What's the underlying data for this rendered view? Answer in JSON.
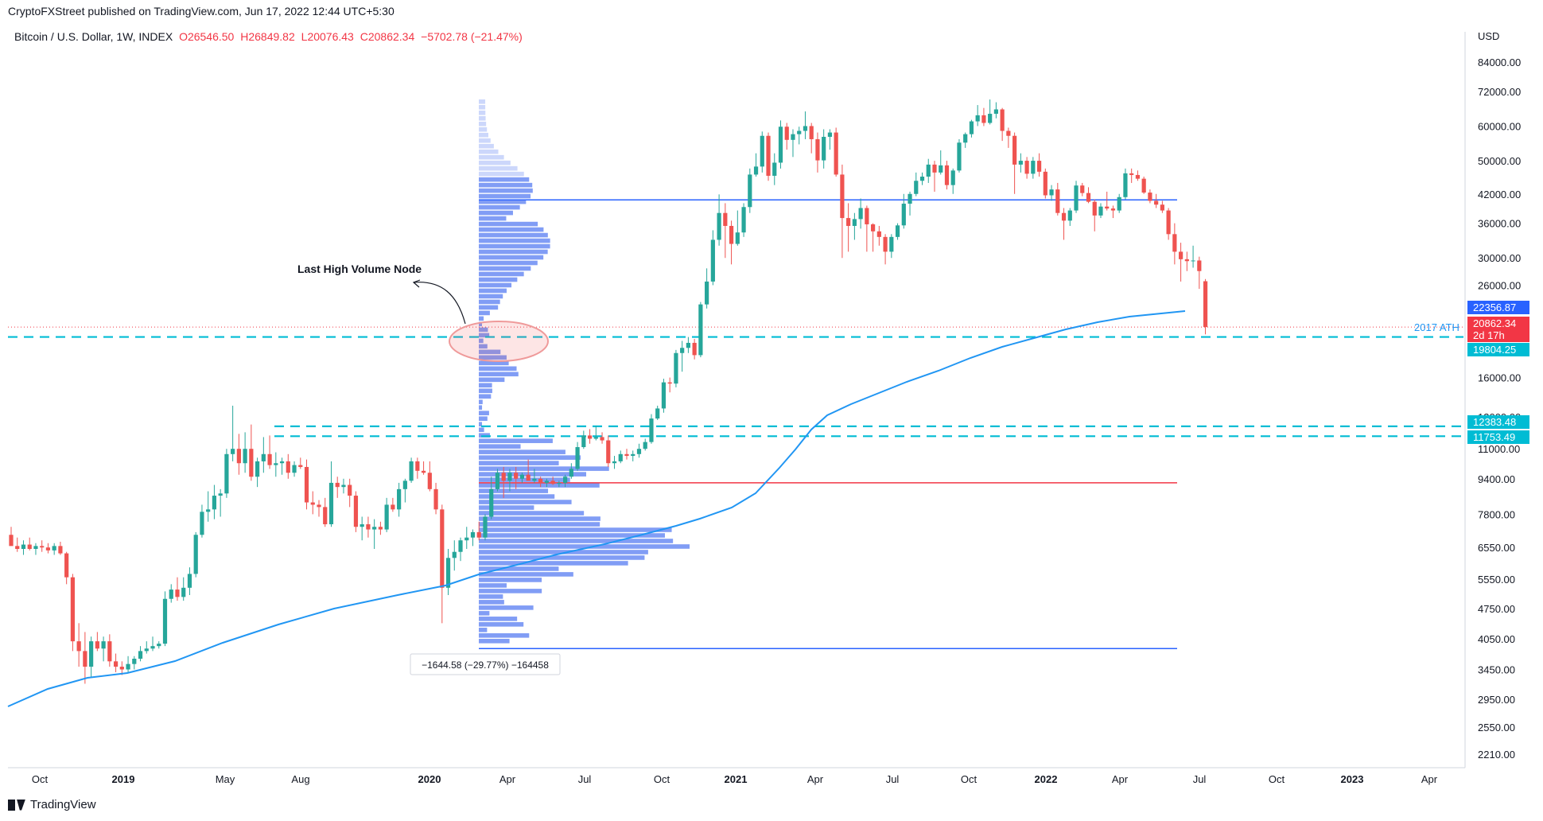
{
  "header": {
    "publisher_line": "CryptoFXStreet published on TradingView.com, Jun 17, 2022 12:44 UTC+5:30",
    "symbol": "Bitcoin / U.S. Dollar, 1W, INDEX",
    "open": "O26546.50",
    "high": "H26849.82",
    "low": "L20076.43",
    "close": "C20862.34",
    "change": "−5702.78 (−21.47%)"
  },
  "footer": {
    "brand": "TradingView"
  },
  "chart_data": {
    "type": "candlestick",
    "currency_label": "USD",
    "y_scale": "log",
    "y_ticks": [
      84000,
      72000,
      60000,
      50000,
      42000,
      36000,
      30000,
      26000,
      16000,
      13000,
      11000,
      9400,
      7800,
      6550,
      5550,
      4750,
      4050,
      3450,
      2950,
      2550,
      2210
    ],
    "x_ticks": [
      "Oct",
      "2019",
      "May",
      "Aug",
      "2020",
      "Apr",
      "Jul",
      "Oct",
      "2021",
      "Apr",
      "Jul",
      "Oct",
      "2022",
      "Apr",
      "Jul",
      "Oct",
      "2023",
      "Apr"
    ],
    "price_labels": [
      {
        "value": "22356.87",
        "color": "#2962ff"
      },
      {
        "value": "20862.34",
        "sub": "2d 17h",
        "color": "#f23645"
      },
      {
        "value": "19804.25",
        "color": "#00bcd4"
      },
      {
        "value": "12383.48",
        "color": "#00bcd4"
      },
      {
        "value": "11753.49",
        "color": "#00bcd4"
      }
    ],
    "annotations": {
      "node_label": "Last High Volume Node",
      "ath_label": "2017 ATH",
      "measure_label": "−1644.58 (−29.77%) −164458"
    },
    "horizontal_levels": [
      {
        "price": 40700,
        "color": "#2962ff",
        "style": "solid"
      },
      {
        "price": 19804.25,
        "color": "#00bcd4",
        "style": "dashed"
      },
      {
        "price": 12383.48,
        "color": "#00bcd4",
        "style": "dashed"
      },
      {
        "price": 11753.49,
        "color": "#00bcd4",
        "style": "dashed"
      },
      {
        "price": 9200,
        "color": "#f23645",
        "style": "solid"
      },
      {
        "price": 3850,
        "color": "#2962ff",
        "style": "solid"
      }
    ],
    "candles": [
      [
        7000,
        7300,
        6800,
        6600
      ],
      [
        6600,
        6900,
        6400,
        6500
      ],
      [
        6500,
        6800,
        6300,
        6650
      ],
      [
        6650,
        6900,
        6450,
        6500
      ],
      [
        6500,
        6700,
        6300,
        6600
      ],
      [
        6600,
        6800,
        6400,
        6550
      ],
      [
        6550,
        6700,
        6350,
        6450
      ],
      [
        6450,
        6700,
        6300,
        6600
      ],
      [
        6600,
        6750,
        6300,
        6350
      ],
      [
        6350,
        6400,
        5400,
        5600
      ],
      [
        5600,
        5700,
        3800,
        4000
      ],
      [
        4000,
        4400,
        3500,
        3800
      ],
      [
        3800,
        4200,
        3200,
        3500
      ],
      [
        3500,
        4100,
        3300,
        4000
      ],
      [
        4000,
        4200,
        3800,
        3850
      ],
      [
        3850,
        4100,
        3600,
        4000
      ],
      [
        4000,
        4150,
        3500,
        3600
      ],
      [
        3600,
        3750,
        3400,
        3500
      ],
      [
        3500,
        3600,
        3350,
        3450
      ],
      [
        3450,
        3700,
        3400,
        3550
      ],
      [
        3550,
        3700,
        3450,
        3650
      ],
      [
        3650,
        3900,
        3600,
        3800
      ],
      [
        3800,
        4000,
        3750,
        3850
      ],
      [
        3850,
        4100,
        3800,
        3900
      ],
      [
        3900,
        4000,
        3850,
        3950
      ],
      [
        3950,
        5200,
        3900,
        5000
      ],
      [
        5000,
        5400,
        4900,
        5250
      ],
      [
        5250,
        5600,
        4950,
        5050
      ],
      [
        5050,
        5600,
        4950,
        5300
      ],
      [
        5300,
        5900,
        5100,
        5700
      ],
      [
        5700,
        7100,
        5600,
        7000
      ],
      [
        7000,
        8200,
        6900,
        7900
      ],
      [
        7900,
        8800,
        7500,
        8000
      ],
      [
        8000,
        9100,
        7600,
        8600
      ],
      [
        8600,
        8900,
        7700,
        8700
      ],
      [
        8700,
        11000,
        8500,
        10700
      ],
      [
        10700,
        13800,
        10300,
        11000
      ],
      [
        11000,
        11900,
        9600,
        10200
      ],
      [
        10200,
        12000,
        9700,
        11000
      ],
      [
        11000,
        12500,
        9300,
        9500
      ],
      [
        9500,
        10500,
        9000,
        10300
      ],
      [
        10300,
        11700,
        9700,
        10700
      ],
      [
        10700,
        11800,
        9900,
        10100
      ],
      [
        10100,
        10800,
        9500,
        10200
      ],
      [
        10200,
        10500,
        9600,
        10300
      ],
      [
        10300,
        10700,
        9400,
        9700
      ],
      [
        9700,
        10300,
        9500,
        10100
      ],
      [
        10100,
        10500,
        9900,
        10000
      ],
      [
        10000,
        10400,
        8000,
        8300
      ],
      [
        8300,
        8800,
        7800,
        8200
      ],
      [
        8200,
        8400,
        7700,
        8100
      ],
      [
        8100,
        8500,
        7300,
        7400
      ],
      [
        7400,
        10300,
        7300,
        9200
      ],
      [
        9200,
        9500,
        8500,
        9000
      ],
      [
        9000,
        9400,
        8700,
        9100
      ],
      [
        9100,
        9400,
        8100,
        8600
      ],
      [
        8600,
        8800,
        7100,
        7300
      ],
      [
        7300,
        7700,
        6800,
        7400
      ],
      [
        7400,
        7700,
        6900,
        7200
      ],
      [
        7200,
        7600,
        6500,
        7300
      ],
      [
        7300,
        7500,
        7000,
        7200
      ],
      [
        7200,
        8500,
        7100,
        8200
      ],
      [
        8200,
        8500,
        7900,
        8000
      ],
      [
        8000,
        9200,
        7700,
        8900
      ],
      [
        8900,
        9400,
        8300,
        9300
      ],
      [
        9300,
        10500,
        9200,
        10300
      ],
      [
        10300,
        10500,
        9400,
        9800
      ],
      [
        9800,
        10300,
        9600,
        9700
      ],
      [
        9700,
        10300,
        8800,
        8900
      ],
      [
        8900,
        9200,
        7800,
        8000
      ],
      [
        8000,
        8200,
        4400,
        5300
      ],
      [
        5300,
        6500,
        5100,
        6200
      ],
      [
        6200,
        6800,
        5800,
        6400
      ],
      [
        6400,
        6900,
        6100,
        6800
      ],
      [
        6800,
        7300,
        6500,
        6900
      ],
      [
        6900,
        7200,
        6600,
        7100
      ],
      [
        7100,
        7500,
        6800,
        6900
      ],
      [
        6900,
        7800,
        6800,
        7700
      ],
      [
        7700,
        9500,
        7600,
        8900
      ],
      [
        8900,
        9900,
        8800,
        9700
      ],
      [
        9700,
        10000,
        8500,
        9300
      ],
      [
        9300,
        9900,
        8800,
        9700
      ],
      [
        9700,
        10000,
        8900,
        9400
      ],
      [
        9400,
        9700,
        9200,
        9600
      ],
      [
        9600,
        10400,
        9500,
        9300
      ],
      [
        9300,
        9900,
        9200,
        9400
      ],
      [
        9400,
        9500,
        9000,
        9200
      ],
      [
        9200,
        9400,
        9000,
        9300
      ],
      [
        9300,
        9500,
        9100,
        9150
      ],
      [
        9150,
        9300,
        9000,
        9200
      ],
      [
        9200,
        9600,
        9000,
        9500
      ],
      [
        9500,
        10200,
        9400,
        9900
      ],
      [
        9900,
        11400,
        9800,
        11100
      ],
      [
        11100,
        12100,
        11000,
        11800
      ],
      [
        11800,
        12200,
        11300,
        11600
      ],
      [
        11600,
        12400,
        11500,
        11700
      ],
      [
        11700,
        12000,
        11300,
        11500
      ],
      [
        11500,
        11800,
        10000,
        10200
      ],
      [
        10200,
        10600,
        9900,
        10300
      ],
      [
        10300,
        10900,
        10200,
        10700
      ],
      [
        10700,
        11000,
        10400,
        10600
      ],
      [
        10600,
        10900,
        10300,
        10700
      ],
      [
        10700,
        11300,
        10500,
        11000
      ],
      [
        11000,
        11600,
        10900,
        11400
      ],
      [
        11400,
        13200,
        11300,
        12900
      ],
      [
        12900,
        13800,
        12800,
        13600
      ],
      [
        13600,
        15900,
        13300,
        15600
      ],
      [
        15600,
        16000,
        14800,
        15500
      ],
      [
        15500,
        18500,
        15200,
        18200
      ],
      [
        18200,
        19400,
        16500,
        18700
      ],
      [
        18700,
        19800,
        18200,
        19200
      ],
      [
        19200,
        19600,
        17600,
        18000
      ],
      [
        18000,
        23800,
        17800,
        23500
      ],
      [
        23500,
        28400,
        23000,
        26500
      ],
      [
        26500,
        34700,
        26000,
        33000
      ],
      [
        33000,
        41900,
        32000,
        38000
      ],
      [
        38000,
        40000,
        30000,
        35500
      ],
      [
        35500,
        36500,
        29000,
        32300
      ],
      [
        32300,
        38500,
        32000,
        34300
      ],
      [
        34300,
        40000,
        33500,
        39200
      ],
      [
        39200,
        48000,
        38000,
        46500
      ],
      [
        46500,
        52000,
        46000,
        48500
      ],
      [
        48500,
        58300,
        47000,
        57000
      ],
      [
        57000,
        58000,
        45000,
        46200
      ],
      [
        46200,
        52000,
        44000,
        49500
      ],
      [
        49500,
        61800,
        48000,
        59800
      ],
      [
        59800,
        61000,
        53000,
        55800
      ],
      [
        55800,
        59000,
        51000,
        57500
      ],
      [
        57500,
        59800,
        54500,
        58500
      ],
      [
        58500,
        64800,
        56000,
        60000
      ],
      [
        60000,
        61000,
        52000,
        56000
      ],
      [
        56000,
        58000,
        47000,
        50100
      ],
      [
        50100,
        59000,
        48000,
        56700
      ],
      [
        56700,
        59000,
        53000,
        58000
      ],
      [
        58000,
        59500,
        46000,
        46500
      ],
      [
        46500,
        49000,
        30000,
        37000
      ],
      [
        37000,
        40000,
        31000,
        35500
      ],
      [
        35500,
        38000,
        33000,
        36800
      ],
      [
        36800,
        41000,
        35000,
        39000
      ],
      [
        39000,
        39500,
        31000,
        35800
      ],
      [
        35800,
        36000,
        31000,
        34500
      ],
      [
        34500,
        35500,
        32000,
        33500
      ],
      [
        33500,
        34000,
        29000,
        31000
      ],
      [
        31000,
        34000,
        30000,
        33500
      ],
      [
        33500,
        36000,
        33000,
        35600
      ],
      [
        35600,
        42000,
        35000,
        39900
      ],
      [
        39900,
        42500,
        37500,
        42000
      ],
      [
        42000,
        47000,
        41500,
        45000
      ],
      [
        45000,
        47000,
        44000,
        46000
      ],
      [
        46000,
        50500,
        44500,
        49000
      ],
      [
        49000,
        50000,
        42500,
        47000
      ],
      [
        47000,
        52800,
        46500,
        48800
      ],
      [
        48800,
        50000,
        43000,
        44000
      ],
      [
        44000,
        48000,
        42000,
        47500
      ],
      [
        47500,
        56000,
        47000,
        55000
      ],
      [
        55000,
        58000,
        53500,
        57500
      ],
      [
        57500,
        62000,
        56500,
        61500
      ],
      [
        61500,
        67000,
        60000,
        63500
      ],
      [
        63500,
        66000,
        60000,
        61000
      ],
      [
        61000,
        69000,
        60500,
        64000
      ],
      [
        64000,
        68000,
        62500,
        65500
      ],
      [
        65500,
        66000,
        55500,
        58500
      ],
      [
        58500,
        59500,
        53500,
        57000
      ],
      [
        57000,
        58000,
        42000,
        49000
      ],
      [
        49000,
        52000,
        47000,
        50000
      ],
      [
        50000,
        51000,
        45500,
        46700
      ],
      [
        46700,
        51000,
        45500,
        50000
      ],
      [
        50000,
        52000,
        46000,
        47200
      ],
      [
        47200,
        48000,
        41000,
        41700
      ],
      [
        41700,
        44000,
        40500,
        43000
      ],
      [
        43000,
        44500,
        37500,
        38000
      ],
      [
        38000,
        39000,
        33000,
        36500
      ],
      [
        36500,
        39000,
        35500,
        38500
      ],
      [
        38500,
        45000,
        38000,
        43900
      ],
      [
        43900,
        44500,
        41500,
        42200
      ],
      [
        42200,
        43500,
        40000,
        40300
      ],
      [
        40300,
        40800,
        34500,
        37500
      ],
      [
        37500,
        40000,
        37000,
        39300
      ],
      [
        39300,
        42500,
        38500,
        38900
      ],
      [
        38900,
        39500,
        37000,
        38500
      ],
      [
        38500,
        42000,
        38000,
        41300
      ],
      [
        41300,
        48000,
        40800,
        46800
      ],
      [
        46800,
        48000,
        44500,
        46400
      ],
      [
        46400,
        47500,
        45000,
        45500
      ],
      [
        45500,
        46000,
        42000,
        42300
      ],
      [
        42300,
        43000,
        40000,
        40500
      ],
      [
        40500,
        42000,
        39000,
        39700
      ],
      [
        39700,
        40500,
        38000,
        38500
      ],
      [
        38500,
        39000,
        33000,
        34000
      ],
      [
        34000,
        36000,
        29000,
        31000
      ],
      [
        31000,
        32500,
        26500,
        29800
      ],
      [
        29800,
        31000,
        28000,
        29500
      ],
      [
        29500,
        32000,
        28500,
        29600
      ],
      [
        29600,
        30200,
        25500,
        28000
      ],
      [
        26546,
        26850,
        20076,
        20862
      ]
    ],
    "volume_profile_rows": 98
  }
}
